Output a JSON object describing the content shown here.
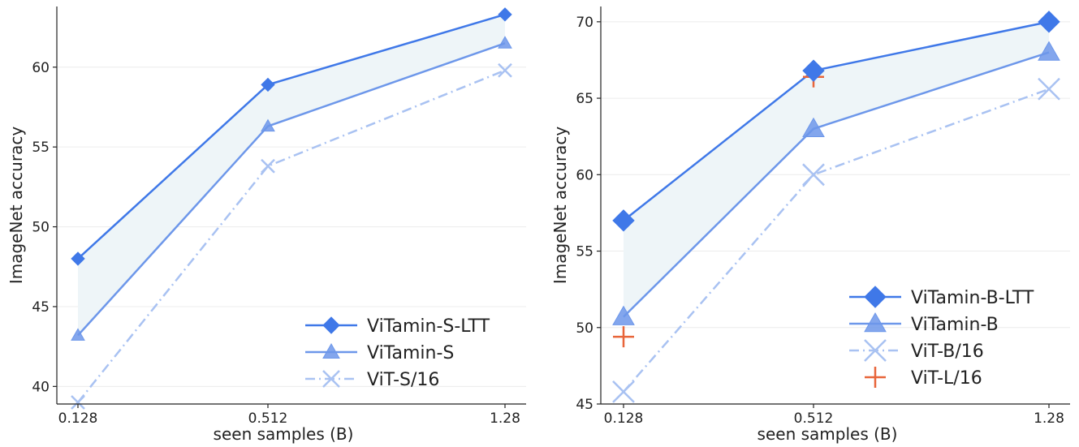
{
  "chart_data": [
    {
      "type": "line",
      "x": [
        "0.128",
        "0.512",
        "1.28"
      ],
      "xlabel": "seen samples (B)",
      "ylabel": "ImageNet accuracy",
      "ylim": [
        38.9,
        63.8
      ],
      "yticks": [
        40,
        45,
        50,
        55,
        60
      ],
      "grid": "horizontal",
      "legend_position": "lower-right",
      "band_between": [
        "ViTamin-S-LTT",
        "ViTamin-S"
      ],
      "band_color": "#eef5f8",
      "series": [
        {
          "name": "ViTamin-S-LTT",
          "values": [
            48.0,
            58.9,
            63.3
          ],
          "marker": "diamond",
          "color": "#3f78e8",
          "dash": "solid"
        },
        {
          "name": "ViTamin-S",
          "values": [
            43.2,
            56.3,
            61.5
          ],
          "marker": "triangle",
          "color": "#6d97ea",
          "dash": "solid"
        },
        {
          "name": "ViT-S/16",
          "values": [
            39.0,
            53.8,
            59.8
          ],
          "marker": "x",
          "color": "#a9c2f2",
          "dash": "dashdot"
        }
      ]
    },
    {
      "type": "line",
      "x": [
        "0.128",
        "0.512",
        "1.28"
      ],
      "xlabel": "seen samples (B)",
      "ylabel": "ImageNet accuracy",
      "ylim": [
        45,
        71
      ],
      "yticks": [
        45,
        50,
        55,
        60,
        65,
        70
      ],
      "grid": "horizontal",
      "legend_position": "lower-right",
      "band_between": [
        "ViTamin-B-LTT",
        "ViTamin-B"
      ],
      "band_color": "#eef5f8",
      "series": [
        {
          "name": "ViTamin-B-LTT",
          "values": [
            57.0,
            66.8,
            70.0
          ],
          "marker": "diamond",
          "color": "#3f78e8",
          "dash": "solid"
        },
        {
          "name": "ViTamin-B",
          "values": [
            50.7,
            63.0,
            68.0
          ],
          "marker": "triangle",
          "color": "#6d97ea",
          "dash": "solid"
        },
        {
          "name": "ViT-B/16",
          "values": [
            45.8,
            60.0,
            65.6
          ],
          "marker": "x",
          "color": "#a9c2f2",
          "dash": "dashdot"
        },
        {
          "name": "ViT-L/16",
          "values": [
            49.4,
            66.4,
            null
          ],
          "marker": "plus",
          "color": "#e8653a",
          "dash": "none"
        }
      ]
    }
  ]
}
